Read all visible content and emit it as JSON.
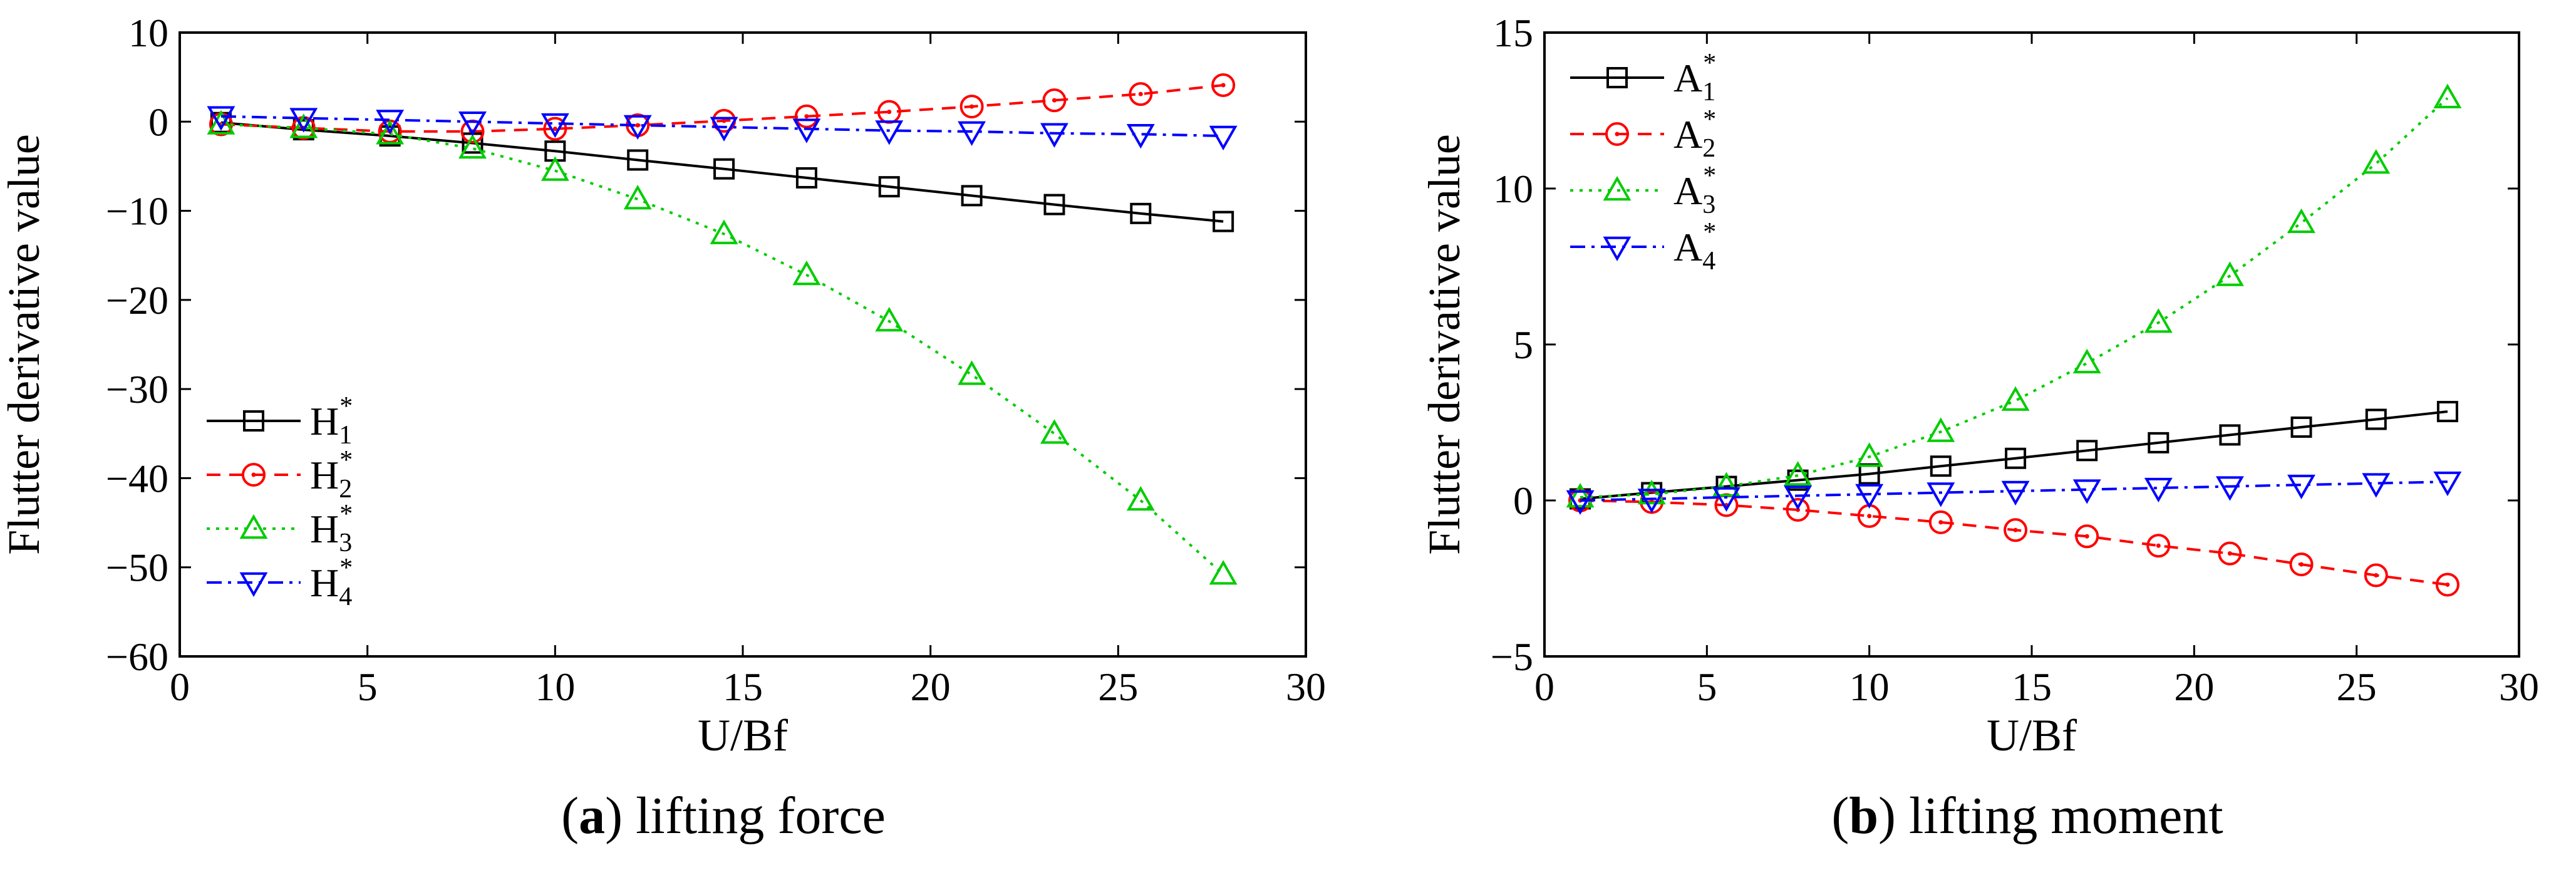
{
  "colors": {
    "H1": "#000000",
    "H2": "#ff0000",
    "H3": "#00cc00",
    "H4": "#0000ff",
    "A1": "#000000",
    "A2": "#ff0000",
    "A3": "#00cc00",
    "A4": "#0000ff",
    "axis": "#000000"
  },
  "chart_data": [
    {
      "type": "line",
      "panel": "a",
      "caption": {
        "letter": "a",
        "text": " lifting force"
      },
      "title": "",
      "xlabel": "U/Bf",
      "ylabel": "Flutter derivative value",
      "xlim": [
        0,
        30
      ],
      "ylim": [
        -60,
        10
      ],
      "xticks": [
        0,
        5,
        10,
        15,
        20,
        25,
        30
      ],
      "yticks": [
        10,
        0,
        -10,
        -20,
        -30,
        -40,
        -50,
        -60
      ],
      "legend_position": "lower-left",
      "x": [
        1.1,
        3.3,
        5.6,
        7.8,
        10.0,
        12.2,
        14.5,
        16.7,
        18.9,
        21.1,
        23.3,
        25.6,
        27.8
      ],
      "series": [
        {
          "name": "H1",
          "base": "H",
          "sub": "1",
          "sup": "*",
          "marker": "square",
          "linestyle": "solid",
          "color_key": "H1",
          "values": [
            -0.1,
            -0.9,
            -1.6,
            -2.4,
            -3.3,
            -4.3,
            -5.3,
            -6.3,
            -7.3,
            -8.3,
            -9.3,
            -10.3,
            -11.2
          ]
        },
        {
          "name": "H2",
          "base": "H",
          "sub": "2",
          "sup": "*",
          "marker": "circle",
          "linestyle": "dashed",
          "color_key": "H2",
          "values": [
            -0.3,
            -0.7,
            -1.1,
            -1.1,
            -0.8,
            -0.4,
            0.1,
            0.6,
            1.1,
            1.7,
            2.4,
            3.1,
            4.1
          ]
        },
        {
          "name": "H3",
          "base": "H",
          "sub": "3",
          "sup": "*",
          "marker": "triangle-up",
          "linestyle": "dotted",
          "color_key": "H3",
          "values": [
            -0.3,
            -0.7,
            -1.4,
            -3.0,
            -5.5,
            -8.7,
            -12.6,
            -17.2,
            -22.4,
            -28.4,
            -35.0,
            -42.5,
            -50.8
          ]
        },
        {
          "name": "H4",
          "base": "H",
          "sub": "4",
          "sup": "*",
          "marker": "triangle-down",
          "linestyle": "dashdot",
          "color_key": "H4",
          "values": [
            0.6,
            0.4,
            0.2,
            0.0,
            -0.2,
            -0.4,
            -0.6,
            -0.8,
            -1.0,
            -1.1,
            -1.3,
            -1.4,
            -1.6
          ]
        }
      ]
    },
    {
      "type": "line",
      "panel": "b",
      "caption": {
        "letter": "b",
        "text": " lifting moment"
      },
      "title": "",
      "xlabel": "U/Bf",
      "ylabel": "Flutter derivative value",
      "xlim": [
        0,
        30
      ],
      "ylim": [
        -5,
        15
      ],
      "xticks": [
        0,
        5,
        10,
        15,
        20,
        25,
        30
      ],
      "yticks": [
        15,
        10,
        5,
        0,
        -5
      ],
      "legend_position": "upper-left",
      "x": [
        1.1,
        3.3,
        5.6,
        7.8,
        10.0,
        12.2,
        14.5,
        16.7,
        18.9,
        21.1,
        23.3,
        25.6,
        27.8
      ],
      "series": [
        {
          "name": "A1",
          "base": "A",
          "sub": "1",
          "sup": "*",
          "marker": "square",
          "linestyle": "solid",
          "color_key": "A1",
          "values": [
            0.05,
            0.25,
            0.45,
            0.65,
            0.85,
            1.1,
            1.35,
            1.6,
            1.85,
            2.1,
            2.35,
            2.6,
            2.85
          ]
        },
        {
          "name": "A2",
          "base": "A",
          "sub": "2",
          "sup": "*",
          "marker": "circle",
          "linestyle": "dashed",
          "color_key": "A2",
          "values": [
            0.0,
            -0.05,
            -0.15,
            -0.3,
            -0.5,
            -0.7,
            -0.95,
            -1.15,
            -1.45,
            -1.7,
            -2.05,
            -2.4,
            -2.7
          ]
        },
        {
          "name": "A3",
          "base": "A",
          "sub": "3",
          "sup": "*",
          "marker": "triangle-up",
          "linestyle": "dotted",
          "color_key": "A3",
          "values": [
            0.1,
            0.2,
            0.45,
            0.8,
            1.4,
            2.2,
            3.2,
            4.4,
            5.7,
            7.2,
            8.9,
            10.8,
            12.9
          ]
        },
        {
          "name": "A4",
          "base": "A",
          "sub": "4",
          "sup": "*",
          "marker": "triangle-down",
          "linestyle": "dashdot",
          "color_key": "A4",
          "values": [
            0.0,
            0.05,
            0.1,
            0.15,
            0.2,
            0.25,
            0.3,
            0.35,
            0.4,
            0.45,
            0.5,
            0.55,
            0.6
          ]
        }
      ]
    }
  ]
}
